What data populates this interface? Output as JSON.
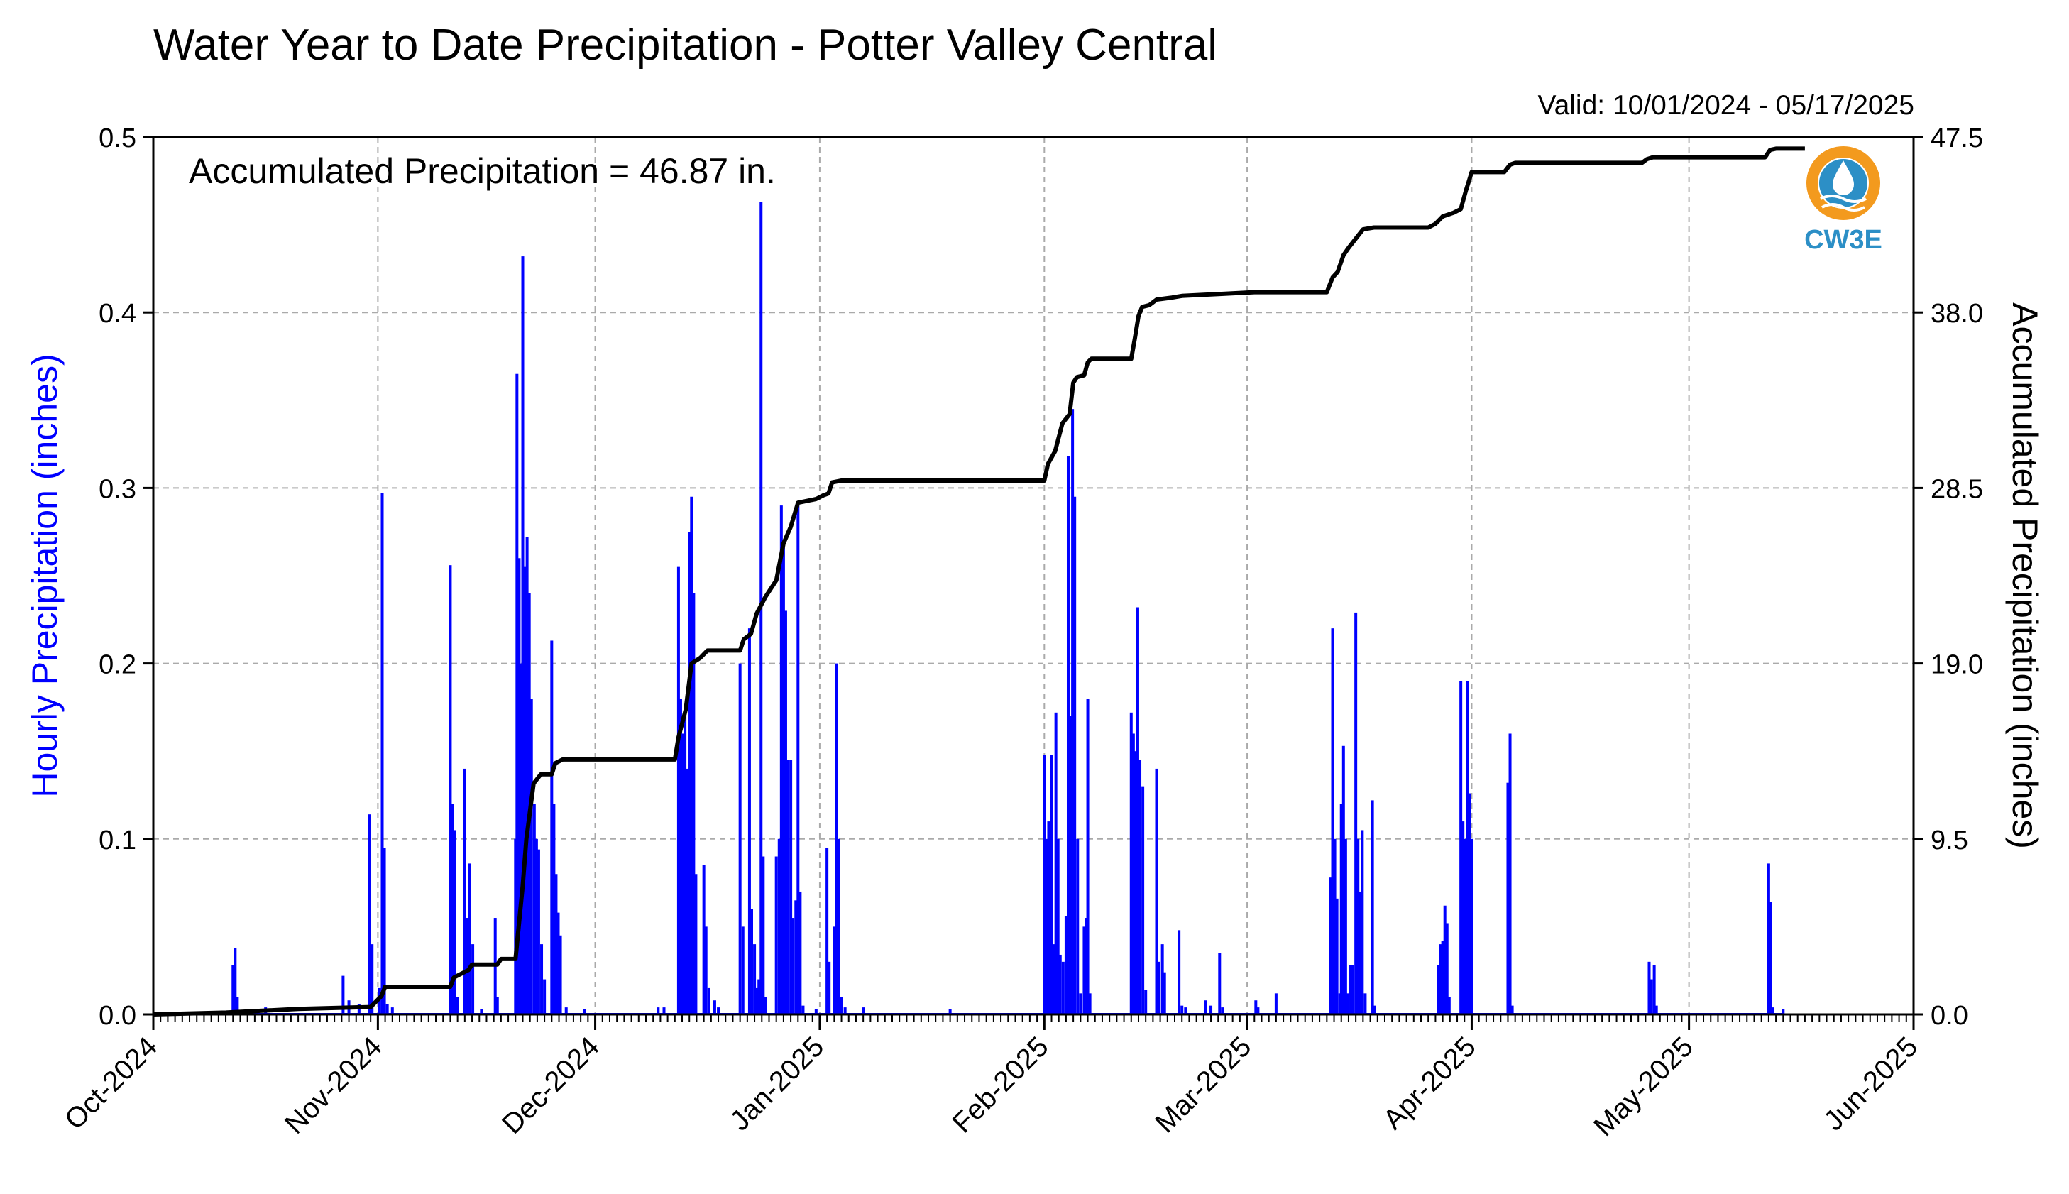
{
  "chart_data": {
    "type": "bar+line",
    "title": "Water Year to Date Precipitation - Potter Valley Central",
    "subtitle": "Valid: 10/01/2024 - 05/17/2025",
    "annotation": "Accumulated Precipitation = 46.87 in.",
    "logo_text": "CW3E",
    "ylabel_left": "Hourly Precipitation (inches)",
    "ylabel_right": "Accumulated Precipitation (inches)",
    "colors": {
      "hourly": "#0000ff",
      "accumulated": "#000000",
      "grid": "#aaaaaa",
      "logo_orange": "#f39a1e",
      "logo_blue": "#2c8fc6"
    },
    "x_range_days": [
      0,
      243
    ],
    "xticks": [
      {
        "label": "Oct-2024",
        "day": 0
      },
      {
        "label": "Nov-2024",
        "day": 31
      },
      {
        "label": "Dec-2024",
        "day": 61
      },
      {
        "label": "Jan-2025",
        "day": 92
      },
      {
        "label": "Feb-2025",
        "day": 123
      },
      {
        "label": "Mar-2025",
        "day": 151
      },
      {
        "label": "Apr-2025",
        "day": 182
      },
      {
        "label": "May-2025",
        "day": 212
      },
      {
        "label": "Jun-2025",
        "day": 243
      }
    ],
    "ylim_left": [
      0,
      0.5
    ],
    "yticks_left": [
      "0.0",
      "0.1",
      "0.2",
      "0.3",
      "0.4",
      "0.5"
    ],
    "ylim_right": [
      0,
      47.5
    ],
    "yticks_right": [
      "0.0",
      "9.5",
      "19.0",
      "28.5",
      "38.0",
      "47.5"
    ],
    "grid": true,
    "hourly": [
      [
        11.0,
        0.028
      ],
      [
        11.3,
        0.038
      ],
      [
        11.6,
        0.01
      ],
      [
        15.5,
        0.004
      ],
      [
        26.2,
        0.022
      ],
      [
        27.0,
        0.008
      ],
      [
        28.4,
        0.006
      ],
      [
        29.8,
        0.114
      ],
      [
        30.2,
        0.04
      ],
      [
        31.2,
        0.015
      ],
      [
        31.6,
        0.297
      ],
      [
        31.9,
        0.095
      ],
      [
        32.3,
        0.006
      ],
      [
        33.0,
        0.004
      ],
      [
        41.0,
        0.256
      ],
      [
        41.3,
        0.12
      ],
      [
        41.6,
        0.105
      ],
      [
        42.0,
        0.01
      ],
      [
        43.0,
        0.14
      ],
      [
        43.3,
        0.055
      ],
      [
        43.7,
        0.086
      ],
      [
        44.1,
        0.04
      ],
      [
        45.3,
        0.003
      ],
      [
        47.2,
        0.055
      ],
      [
        47.5,
        0.01
      ],
      [
        50.0,
        0.1
      ],
      [
        50.2,
        0.365
      ],
      [
        50.5,
        0.26
      ],
      [
        50.8,
        0.2
      ],
      [
        51.0,
        0.432
      ],
      [
        51.3,
        0.255
      ],
      [
        51.6,
        0.272
      ],
      [
        51.9,
        0.24
      ],
      [
        52.2,
        0.18
      ],
      [
        52.6,
        0.12
      ],
      [
        52.9,
        0.1
      ],
      [
        53.2,
        0.094
      ],
      [
        53.6,
        0.04
      ],
      [
        54.0,
        0.02
      ],
      [
        55.0,
        0.213
      ],
      [
        55.3,
        0.12
      ],
      [
        55.6,
        0.08
      ],
      [
        55.9,
        0.058
      ],
      [
        56.2,
        0.045
      ],
      [
        57.0,
        0.004
      ],
      [
        59.5,
        0.003
      ],
      [
        69.7,
        0.004
      ],
      [
        70.5,
        0.004
      ],
      [
        72.5,
        0.255
      ],
      [
        72.8,
        0.18
      ],
      [
        73.1,
        0.16
      ],
      [
        73.4,
        0.17
      ],
      [
        73.7,
        0.14
      ],
      [
        74.0,
        0.275
      ],
      [
        74.3,
        0.295
      ],
      [
        74.6,
        0.24
      ],
      [
        74.9,
        0.08
      ],
      [
        76.0,
        0.085
      ],
      [
        76.3,
        0.05
      ],
      [
        76.7,
        0.015
      ],
      [
        77.5,
        0.008
      ],
      [
        78.0,
        0.004
      ],
      [
        81.0,
        0.2
      ],
      [
        81.4,
        0.05
      ],
      [
        82.3,
        0.22
      ],
      [
        82.6,
        0.06
      ],
      [
        83.0,
        0.04
      ],
      [
        83.3,
        0.015
      ],
      [
        83.6,
        0.02
      ],
      [
        83.9,
        0.463
      ],
      [
        84.2,
        0.09
      ],
      [
        84.5,
        0.01
      ],
      [
        86.0,
        0.09
      ],
      [
        86.4,
        0.1
      ],
      [
        86.7,
        0.29
      ],
      [
        87.0,
        0.27
      ],
      [
        87.3,
        0.23
      ],
      [
        87.6,
        0.145
      ],
      [
        88.0,
        0.145
      ],
      [
        88.3,
        0.055
      ],
      [
        88.7,
        0.065
      ],
      [
        89.0,
        0.29
      ],
      [
        89.3,
        0.07
      ],
      [
        89.7,
        0.005
      ],
      [
        91.5,
        0.003
      ],
      [
        93.0,
        0.095
      ],
      [
        93.3,
        0.03
      ],
      [
        94.0,
        0.05
      ],
      [
        94.3,
        0.2
      ],
      [
        94.6,
        0.1
      ],
      [
        95.0,
        0.01
      ],
      [
        95.5,
        0.004
      ],
      [
        98.0,
        0.004
      ],
      [
        110.0,
        0.003
      ],
      [
        123.0,
        0.148
      ],
      [
        123.3,
        0.1
      ],
      [
        123.6,
        0.11
      ],
      [
        124.0,
        0.148
      ],
      [
        124.3,
        0.04
      ],
      [
        124.6,
        0.172
      ],
      [
        124.9,
        0.1
      ],
      [
        125.2,
        0.034
      ],
      [
        125.6,
        0.03
      ],
      [
        126.0,
        0.056
      ],
      [
        126.3,
        0.318
      ],
      [
        126.6,
        0.17
      ],
      [
        126.9,
        0.345
      ],
      [
        127.2,
        0.295
      ],
      [
        127.6,
        0.1
      ],
      [
        128.0,
        0.012
      ],
      [
        128.5,
        0.05
      ],
      [
        128.8,
        0.055
      ],
      [
        129.0,
        0.18
      ],
      [
        129.3,
        0.012
      ],
      [
        135.0,
        0.172
      ],
      [
        135.3,
        0.16
      ],
      [
        135.6,
        0.15
      ],
      [
        135.9,
        0.232
      ],
      [
        136.2,
        0.145
      ],
      [
        136.6,
        0.13
      ],
      [
        137.0,
        0.014
      ],
      [
        138.5,
        0.14
      ],
      [
        138.8,
        0.03
      ],
      [
        139.3,
        0.04
      ],
      [
        139.6,
        0.024
      ],
      [
        141.6,
        0.048
      ],
      [
        142.0,
        0.005
      ],
      [
        142.5,
        0.004
      ],
      [
        145.3,
        0.008
      ],
      [
        146.0,
        0.005
      ],
      [
        147.2,
        0.035
      ],
      [
        147.6,
        0.004
      ],
      [
        152.2,
        0.008
      ],
      [
        152.5,
        0.004
      ],
      [
        155.0,
        0.012
      ],
      [
        162.5,
        0.078
      ],
      [
        162.8,
        0.22
      ],
      [
        163.1,
        0.1
      ],
      [
        163.4,
        0.066
      ],
      [
        163.8,
        0.012
      ],
      [
        164.0,
        0.12
      ],
      [
        164.3,
        0.153
      ],
      [
        164.6,
        0.1
      ],
      [
        164.9,
        0.012
      ],
      [
        165.3,
        0.028
      ],
      [
        165.6,
        0.028
      ],
      [
        166.0,
        0.229
      ],
      [
        166.3,
        0.1
      ],
      [
        166.6,
        0.07
      ],
      [
        166.9,
        0.105
      ],
      [
        167.3,
        0.012
      ],
      [
        168.3,
        0.122
      ],
      [
        168.6,
        0.005
      ],
      [
        177.4,
        0.028
      ],
      [
        177.7,
        0.04
      ],
      [
        178.0,
        0.042
      ],
      [
        178.3,
        0.062
      ],
      [
        178.6,
        0.052
      ],
      [
        178.9,
        0.01
      ],
      [
        180.5,
        0.19
      ],
      [
        180.8,
        0.11
      ],
      [
        181.1,
        0.1
      ],
      [
        181.4,
        0.19
      ],
      [
        181.7,
        0.126
      ],
      [
        182.0,
        0.1
      ],
      [
        187.0,
        0.132
      ],
      [
        187.3,
        0.16
      ],
      [
        187.6,
        0.005
      ],
      [
        206.5,
        0.03
      ],
      [
        206.8,
        0.02
      ],
      [
        207.2,
        0.028
      ],
      [
        207.5,
        0.005
      ],
      [
        223.0,
        0.086
      ],
      [
        223.3,
        0.064
      ],
      [
        223.6,
        0.004
      ],
      [
        225.0,
        0.003
      ]
    ],
    "accumulated": [
      [
        0,
        0.0
      ],
      [
        10,
        0.1
      ],
      [
        20,
        0.3
      ],
      [
        30,
        0.4
      ],
      [
        31.5,
        1.0
      ],
      [
        32,
        1.5
      ],
      [
        41,
        1.5
      ],
      [
        41.5,
        2.0
      ],
      [
        43.5,
        2.4
      ],
      [
        44,
        2.7
      ],
      [
        47.5,
        2.7
      ],
      [
        48,
        3.0
      ],
      [
        50,
        3.0
      ],
      [
        50.5,
        5.0
      ],
      [
        51,
        7.0
      ],
      [
        51.5,
        9.5
      ],
      [
        52,
        11.0
      ],
      [
        52.5,
        12.5
      ],
      [
        53.5,
        13.0
      ],
      [
        55,
        13.0
      ],
      [
        55.5,
        13.6
      ],
      [
        56.5,
        13.8
      ],
      [
        72,
        13.8
      ],
      [
        72.5,
        15.0
      ],
      [
        73.5,
        16.5
      ],
      [
        74.3,
        19.0
      ],
      [
        75.5,
        19.3
      ],
      [
        76.5,
        19.7
      ],
      [
        81,
        19.7
      ],
      [
        81.5,
        20.3
      ],
      [
        82.5,
        20.6
      ],
      [
        83.3,
        21.7
      ],
      [
        84.5,
        22.6
      ],
      [
        86,
        23.5
      ],
      [
        86.5,
        24.5
      ],
      [
        87,
        25.5
      ],
      [
        88,
        26.4
      ],
      [
        89,
        27.7
      ],
      [
        91.5,
        27.9
      ],
      [
        92.5,
        28.1
      ],
      [
        93.2,
        28.2
      ],
      [
        93.7,
        28.8
      ],
      [
        95,
        28.9
      ],
      [
        123,
        28.9
      ],
      [
        123.5,
        29.8
      ],
      [
        124.5,
        30.5
      ],
      [
        125.5,
        32.0
      ],
      [
        126.5,
        32.5
      ],
      [
        127,
        34.2
      ],
      [
        127.5,
        34.5
      ],
      [
        128.5,
        34.6
      ],
      [
        129,
        35.3
      ],
      [
        129.5,
        35.5
      ],
      [
        135,
        35.5
      ],
      [
        135.5,
        36.6
      ],
      [
        136,
        37.8
      ],
      [
        136.5,
        38.3
      ],
      [
        137.5,
        38.4
      ],
      [
        138.5,
        38.7
      ],
      [
        140.5,
        38.8
      ],
      [
        142,
        38.9
      ],
      [
        147,
        39.0
      ],
      [
        152,
        39.1
      ],
      [
        162,
        39.1
      ],
      [
        162.8,
        39.9
      ],
      [
        163.5,
        40.2
      ],
      [
        164.3,
        41.1
      ],
      [
        165,
        41.5
      ],
      [
        166.2,
        42.1
      ],
      [
        167,
        42.5
      ],
      [
        168.5,
        42.6
      ],
      [
        176,
        42.6
      ],
      [
        177,
        42.8
      ],
      [
        178,
        43.2
      ],
      [
        179.5,
        43.4
      ],
      [
        180.5,
        43.6
      ],
      [
        181.2,
        44.6
      ],
      [
        181.6,
        45.1
      ],
      [
        182,
        45.6
      ],
      [
        186.5,
        45.6
      ],
      [
        187.3,
        46.0
      ],
      [
        188,
        46.1
      ],
      [
        205.5,
        46.1
      ],
      [
        206.2,
        46.3
      ],
      [
        207,
        46.4
      ],
      [
        222.5,
        46.4
      ],
      [
        223.2,
        46.8
      ],
      [
        224,
        46.87
      ],
      [
        228,
        46.87
      ]
    ]
  }
}
